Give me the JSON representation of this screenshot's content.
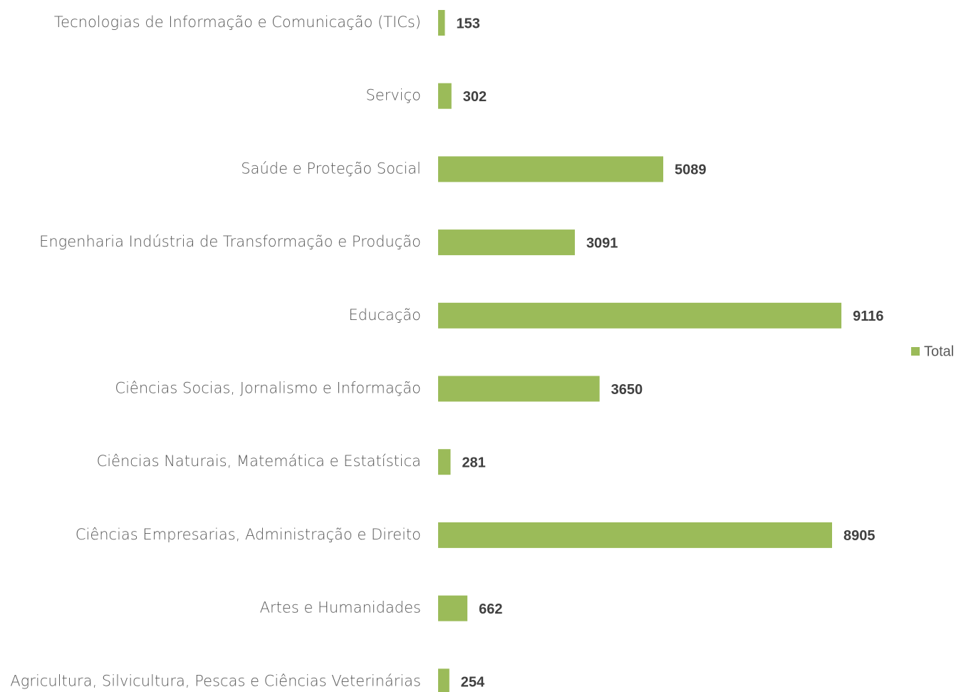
{
  "chart_data": {
    "type": "bar",
    "orientation": "horizontal",
    "categories": [
      "Tecnologias de Informação e Comunicação (TICs)",
      "Serviço",
      "Saúde e Proteção Social",
      "Engenharia Indústria de Transformação e Produção",
      "Educação",
      "Ciências Socias, Jornalismo e Informação",
      "Ciências Naturais, Matemática e Estatística",
      "Ciências Empresarias, Administração e Direito",
      "Artes e Humanidades",
      "Agricultura, Silvicultura, Pescas e Ciências Veterinárias"
    ],
    "series": [
      {
        "name": "Total",
        "color": "#9bbb59",
        "values": [
          153,
          302,
          5089,
          3091,
          9116,
          3650,
          281,
          8905,
          662,
          254
        ]
      }
    ],
    "xlim": [
      0,
      10000
    ],
    "legend": "right",
    "data_labels": true
  }
}
